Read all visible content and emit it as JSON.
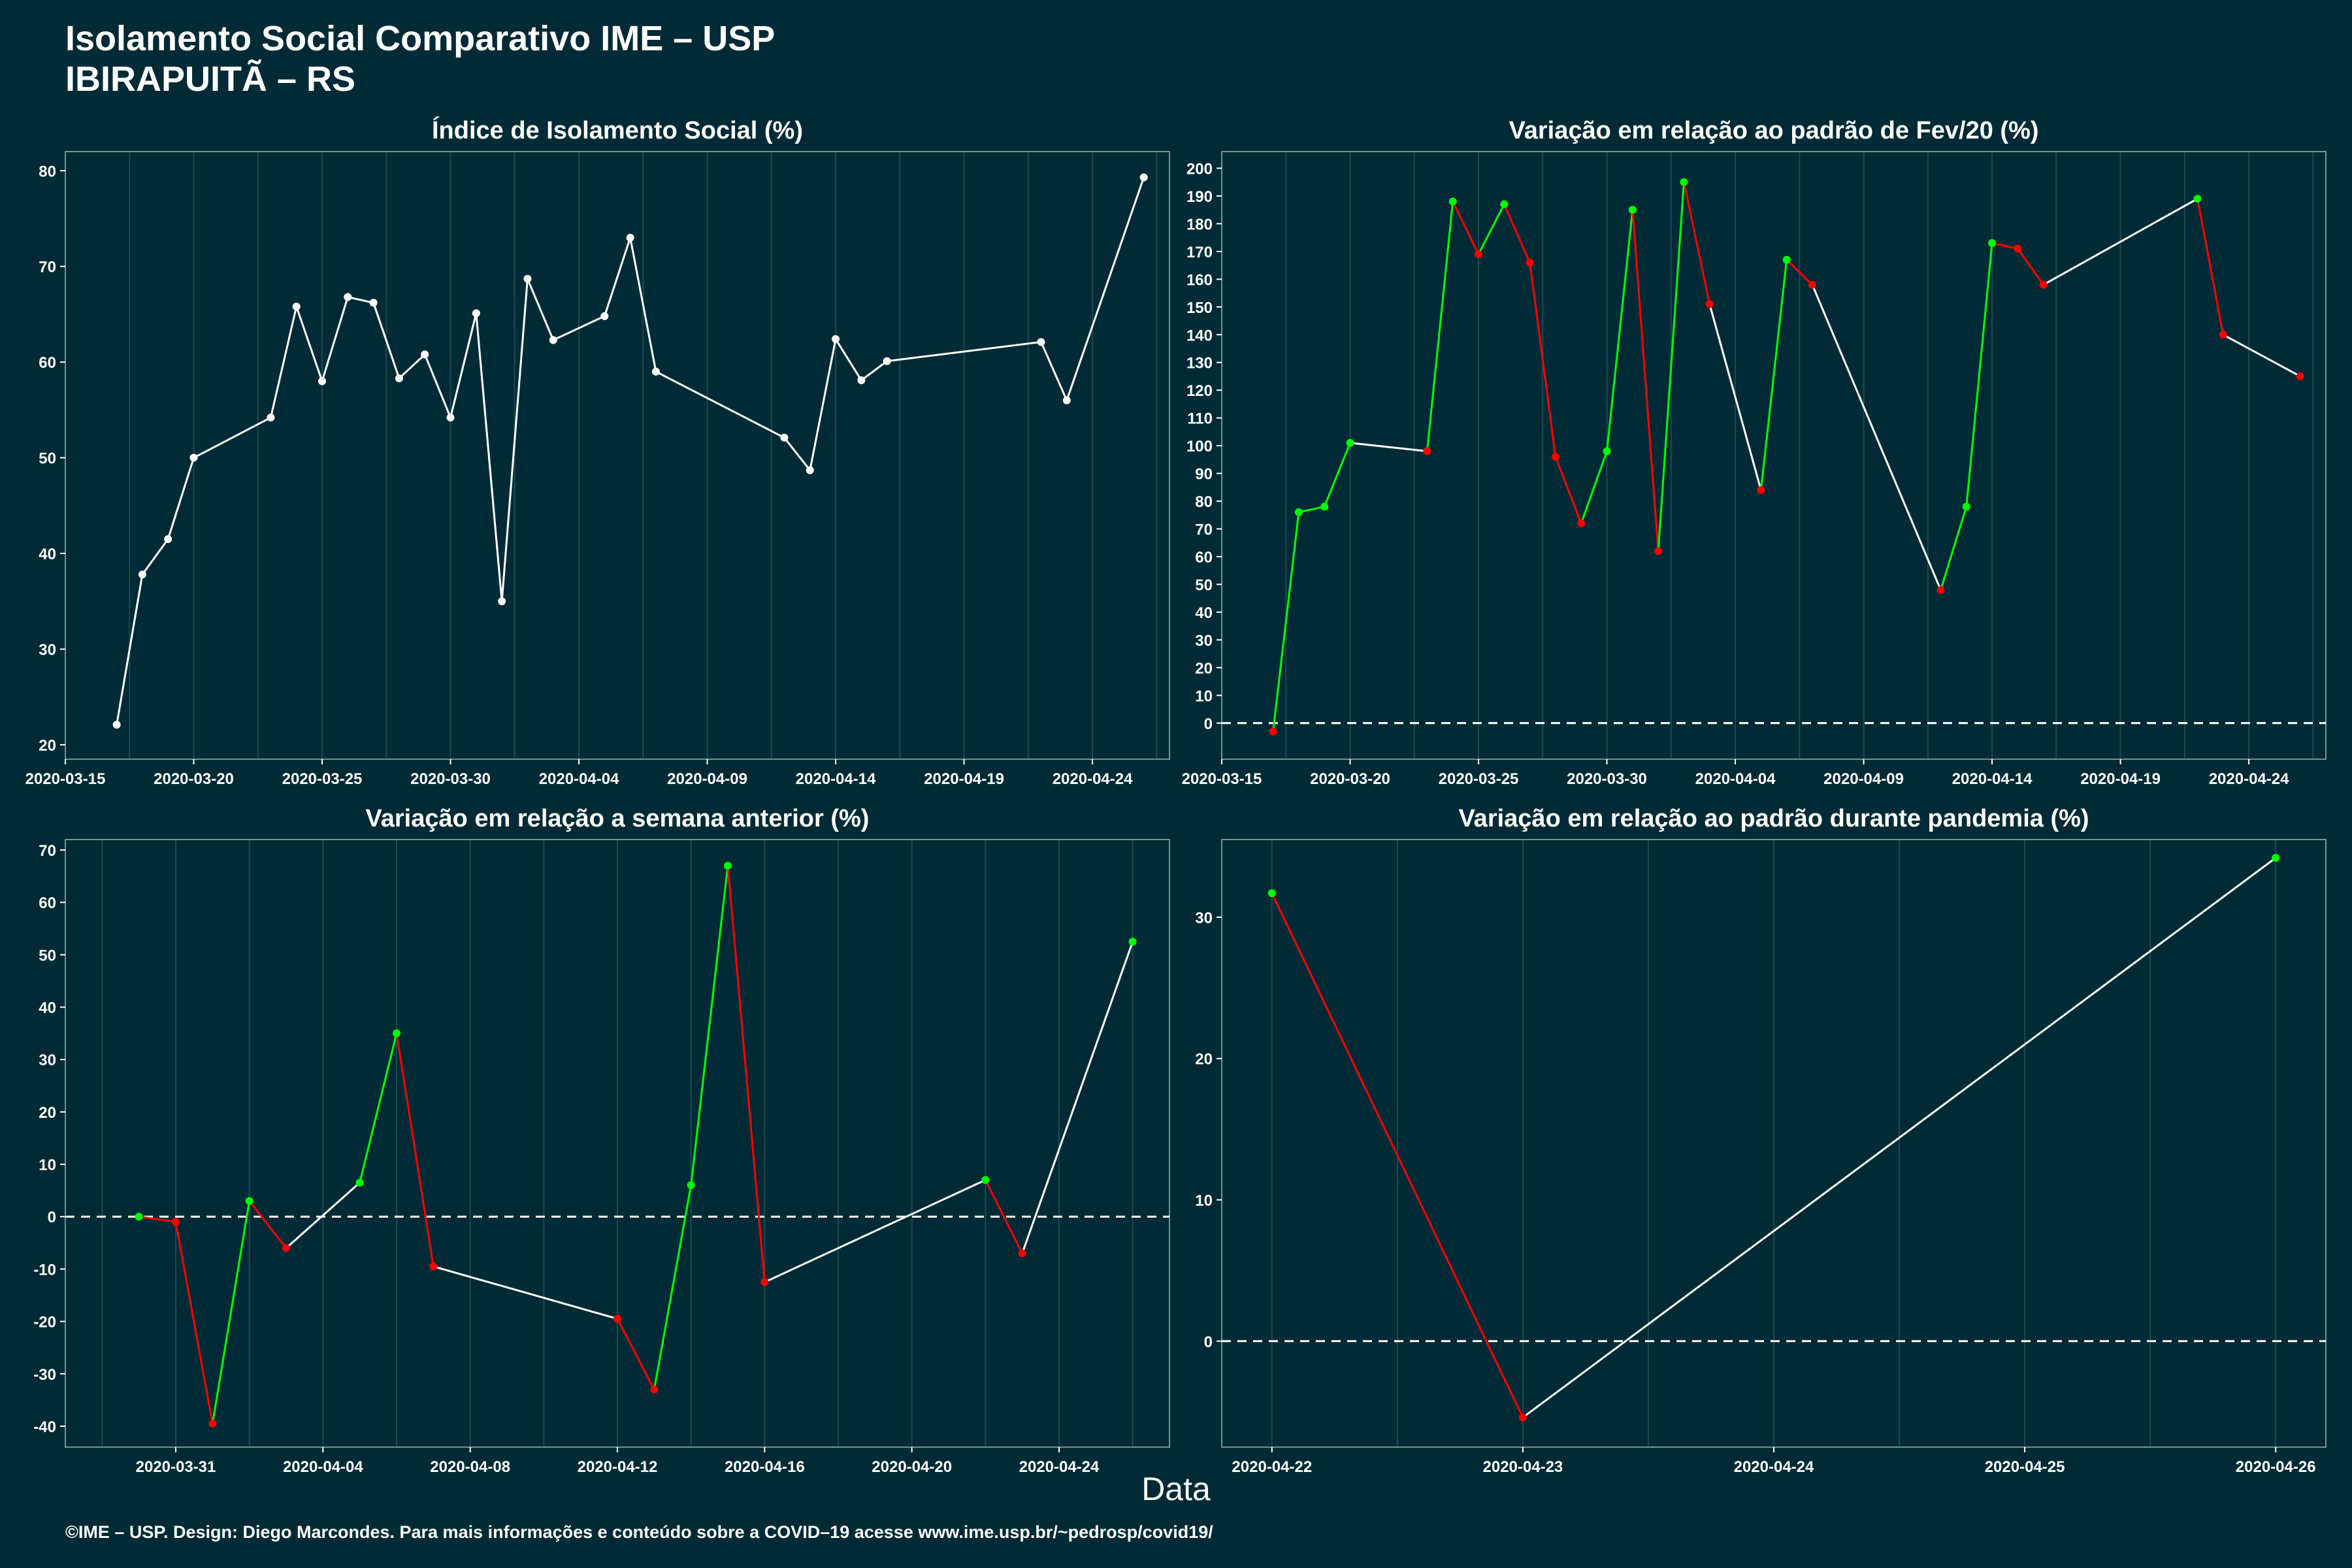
{
  "title": {
    "line1": "Isolamento Social Comparativo IME – USP",
    "line2": "IBIRAPUITÃ – RS"
  },
  "xlabel": "Data",
  "footer": "©IME – USP. Design: Diego Marcondes. Para mais informações e conteúdo sobre a COVID–19 acesse www.ime.usp.br/~pedrosp/covid19/",
  "colors": {
    "background": "#002b36",
    "up": "#00ff00",
    "down": "#ff0000",
    "neutral": "#ffffff"
  },
  "chart_data": [
    {
      "type": "line",
      "title": "Índice de Isolamento Social (%)",
      "xlim": [
        "2020-03-15",
        "2020-04-27"
      ],
      "ylim": [
        18.5,
        82
      ],
      "xticks": [
        "2020-03-15",
        "2020-03-20",
        "2020-03-25",
        "2020-03-30",
        "2020-04-04",
        "2020-04-09",
        "2020-04-14",
        "2020-04-19",
        "2020-04-24"
      ],
      "yticks": [
        20,
        30,
        40,
        50,
        60,
        70,
        80
      ],
      "zero_line": false,
      "color_mode": "white",
      "x": [
        "2020-03-17",
        "2020-03-18",
        "2020-03-19",
        "2020-03-20",
        "2020-03-23",
        "2020-03-24",
        "2020-03-25",
        "2020-03-26",
        "2020-03-27",
        "2020-03-28",
        "2020-03-29",
        "2020-03-30",
        "2020-03-31",
        "2020-04-01",
        "2020-04-02",
        "2020-04-03",
        "2020-04-05",
        "2020-04-06",
        "2020-04-07",
        "2020-04-12",
        "2020-04-13",
        "2020-04-14",
        "2020-04-15",
        "2020-04-16",
        "2020-04-22",
        "2020-04-23",
        "2020-04-26"
      ],
      "values": [
        22.1,
        37.8,
        41.5,
        50.0,
        54.2,
        65.8,
        58.0,
        66.8,
        66.2,
        58.3,
        60.8,
        54.2,
        65.1,
        35.0,
        68.7,
        62.3,
        64.8,
        73.0,
        59.0,
        52.1,
        48.7,
        62.4,
        58.1,
        60.1,
        62.1,
        56.0,
        79.3
      ]
    },
    {
      "type": "line",
      "title": "Variação em relação ao padrão de Fev/20 (%)",
      "xlim": [
        "2020-03-15",
        "2020-04-27"
      ],
      "ylim": [
        -13,
        206
      ],
      "xticks": [
        "2020-03-15",
        "2020-03-20",
        "2020-03-25",
        "2020-03-30",
        "2020-04-04",
        "2020-04-09",
        "2020-04-14",
        "2020-04-19",
        "2020-04-24"
      ],
      "yticks": [
        0,
        10,
        20,
        30,
        40,
        50,
        60,
        70,
        80,
        90,
        100,
        110,
        120,
        130,
        140,
        150,
        160,
        170,
        180,
        190,
        200
      ],
      "zero_line": true,
      "color_mode": "trend",
      "x": [
        "2020-03-17",
        "2020-03-18",
        "2020-03-19",
        "2020-03-20",
        "2020-03-23",
        "2020-03-24",
        "2020-03-25",
        "2020-03-26",
        "2020-03-27",
        "2020-03-28",
        "2020-03-29",
        "2020-03-30",
        "2020-03-31",
        "2020-04-01",
        "2020-04-02",
        "2020-04-03",
        "2020-04-05",
        "2020-04-06",
        "2020-04-07",
        "2020-04-12",
        "2020-04-13",
        "2020-04-14",
        "2020-04-15",
        "2020-04-16",
        "2020-04-22",
        "2020-04-23",
        "2020-04-26"
      ],
      "values": [
        -3,
        76,
        78,
        101,
        98,
        188,
        169,
        187,
        166,
        96,
        72,
        98,
        185,
        62,
        195,
        151,
        84,
        167,
        158,
        48,
        78,
        173,
        171,
        158,
        189,
        140,
        125
      ]
    },
    {
      "type": "line",
      "title": "Variação em relação a semana anterior (%)",
      "xlim": [
        "2020-03-28",
        "2020-04-27"
      ],
      "ylim": [
        -44,
        72
      ],
      "xticks": [
        "2020-03-31",
        "2020-04-04",
        "2020-04-08",
        "2020-04-12",
        "2020-04-16",
        "2020-04-20",
        "2020-04-24"
      ],
      "yticks": [
        -40,
        -30,
        -20,
        -10,
        0,
        10,
        20,
        30,
        40,
        50,
        60,
        70
      ],
      "zero_line": true,
      "color_mode": "trend",
      "x": [
        "2020-03-30",
        "2020-03-31",
        "2020-04-01",
        "2020-04-02",
        "2020-04-03",
        "2020-04-05",
        "2020-04-06",
        "2020-04-07",
        "2020-04-12",
        "2020-04-13",
        "2020-04-14",
        "2020-04-15",
        "2020-04-16",
        "2020-04-22",
        "2020-04-23",
        "2020-04-26"
      ],
      "values": [
        0,
        -1,
        -39.5,
        3,
        -6,
        6.5,
        35,
        -9.5,
        -19.5,
        -33,
        6,
        67,
        -12.5,
        7,
        -7,
        52.5
      ]
    },
    {
      "type": "line",
      "title": "Variação em relação ao padrão durante pandemia (%)",
      "xlim": [
        "2020-04-21.8",
        "2020-04-26.2"
      ],
      "ylim": [
        -7.5,
        35.5
      ],
      "xticks": [
        "2020-04-22",
        "2020-04-23",
        "2020-04-24",
        "2020-04-25",
        "2020-04-26"
      ],
      "yticks": [
        0,
        10,
        20,
        30
      ],
      "zero_line": true,
      "color_mode": "trend",
      "x": [
        "2020-04-22",
        "2020-04-23",
        "2020-04-26"
      ],
      "values": [
        31.7,
        -5.4,
        34.2
      ]
    }
  ]
}
